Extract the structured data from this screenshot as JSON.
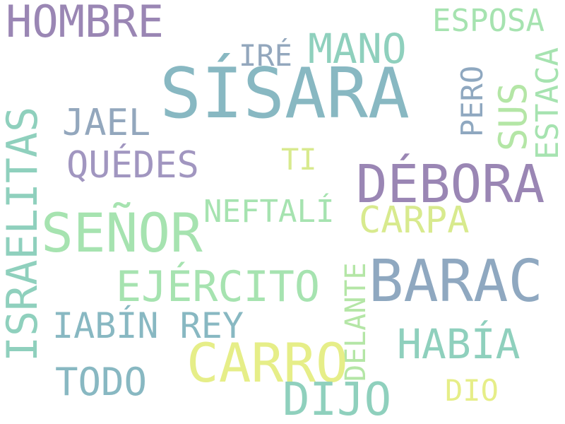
{
  "words": {
    "hombre": "HOMBRE",
    "esposa": "ESPOSA",
    "mano": "MANO",
    "ire": "IRÉ",
    "sisara": "SÍSARA",
    "israelitas": "ISRAELITAS",
    "jael": "JAEL",
    "pero": "PERO",
    "sus": "SUS",
    "estaca": "ESTACA",
    "ti": "TI",
    "quedes": "QUÉDES",
    "debora": "DÉBORA",
    "neftali": "NEFTALÍ",
    "carpa": "CARPA",
    "senor": "SEÑOR",
    "delante": "DELANTE",
    "barac": "BARAC",
    "ejercito": "EJÉRCITO",
    "iabin_rey": "IABÍN REY",
    "habia": "HABÍA",
    "carro": "CARRO",
    "todo": "TODO",
    "dio": "DIO",
    "dijo": "DIJO"
  },
  "colors": {
    "purple": "#9a86b4",
    "teal_blue": "#88b8c2",
    "slate_blue": "#8fa8c0",
    "aqua_green": "#8fd0bd",
    "mint_green": "#a6e3b0",
    "light_green": "#b4e6a6",
    "yellow_green": "#d8ea8e",
    "light_yellow": "#e6ee88",
    "lavender": "#a196c0",
    "grey_blue": "#93a7bd"
  }
}
